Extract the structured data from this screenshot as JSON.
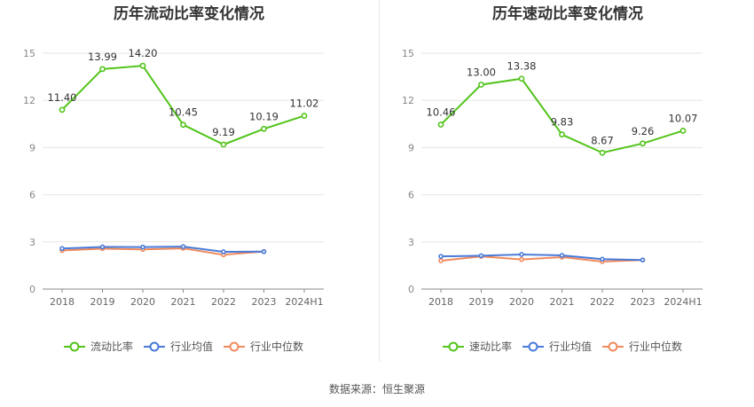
{
  "source": "数据来源：恒生聚源",
  "chart_data": [
    {
      "type": "line",
      "title": "历年流动比率变化情况",
      "categories": [
        "2018",
        "2019",
        "2020",
        "2021",
        "2022",
        "2023",
        "2024H1"
      ],
      "ylim": [
        0,
        15
      ],
      "yticks": [
        "0",
        "3",
        "6",
        "9",
        "12",
        "15"
      ],
      "grid": true,
      "legend": "bottom",
      "series": [
        {
          "name": "流动比率",
          "color": "#52c41a",
          "values": [
            11.4,
            13.99,
            14.2,
            10.45,
            9.19,
            10.19,
            11.02
          ],
          "labels": [
            "11.40",
            "13.99",
            "14.20",
            "10.45",
            "9.19",
            "10.19",
            "11.02"
          ]
        },
        {
          "name": "行业均值",
          "color": "#4a7bd8",
          "values": [
            2.58,
            2.68,
            2.67,
            2.7,
            2.37,
            2.38,
            null
          ]
        },
        {
          "name": "行业中位数",
          "color": "#f08a5d",
          "values": [
            2.45,
            2.57,
            2.52,
            2.59,
            2.18,
            2.39,
            null
          ]
        }
      ]
    },
    {
      "type": "line",
      "title": "历年速动比率变化情况",
      "categories": [
        "2018",
        "2019",
        "2020",
        "2021",
        "2022",
        "2023",
        "2024H1"
      ],
      "ylim": [
        0,
        15
      ],
      "yticks": [
        "0",
        "3",
        "6",
        "9",
        "12",
        "15"
      ],
      "grid": true,
      "legend": "bottom",
      "series": [
        {
          "name": "速动比率",
          "color": "#52c41a",
          "values": [
            10.46,
            13.0,
            13.38,
            9.83,
            8.67,
            9.26,
            10.07
          ],
          "labels": [
            "10.46",
            "13.00",
            "13.38",
            "9.83",
            "8.67",
            "9.26",
            "10.07"
          ]
        },
        {
          "name": "行业均值",
          "color": "#4a7bd8",
          "values": [
            2.08,
            2.12,
            2.2,
            2.14,
            1.9,
            1.85,
            null
          ]
        },
        {
          "name": "行业中位数",
          "color": "#f08a5d",
          "values": [
            1.8,
            2.08,
            1.88,
            2.03,
            1.75,
            1.85,
            null
          ]
        }
      ]
    }
  ]
}
